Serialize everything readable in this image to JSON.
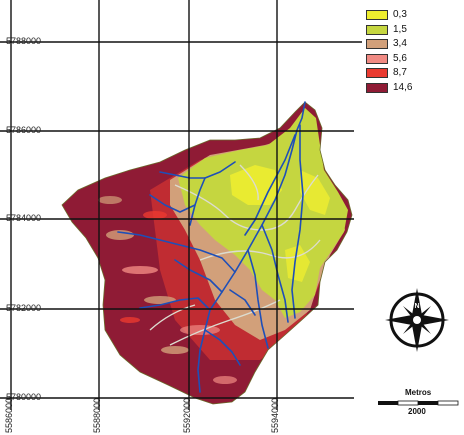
{
  "map": {
    "y_ticks": [
      "5788000",
      "5786000",
      "5784000",
      "5782000",
      "5780000"
    ],
    "x_ticks": [
      "5586000",
      "5588000",
      "5592000",
      "5594000"
    ],
    "legend": [
      {
        "label": "0,3",
        "color": "#efee2f"
      },
      {
        "label": "1,5",
        "color": "#c5d640"
      },
      {
        "label": "3,4",
        "color": "#d2a07a"
      },
      {
        "label": "5,6",
        "color": "#f08a83"
      },
      {
        "label": "8,7",
        "color": "#ea3a30"
      },
      {
        "label": "14,6",
        "color": "#8f1b35"
      }
    ],
    "scale": {
      "title": "Metros",
      "value": "2000"
    },
    "colors": {
      "river": "#1e4fb8",
      "road": "#dcdcd0",
      "grid": "#111111"
    },
    "icons": [
      "north-arrow-compass-icon"
    ]
  }
}
